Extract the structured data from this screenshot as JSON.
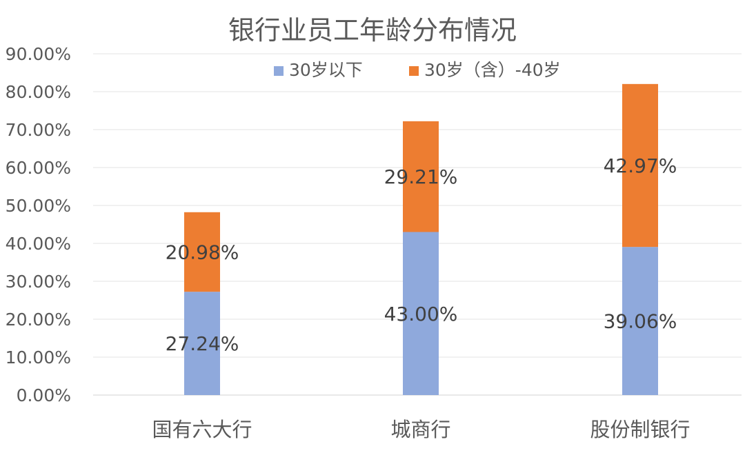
{
  "chart_data": {
    "type": "bar",
    "stacked": true,
    "title": "银行业员工年龄分布情况",
    "categories": [
      "国有六大行",
      "城商行",
      "股份制银行"
    ],
    "series": [
      {
        "name": "30岁以下",
        "color": "#8FA9DC",
        "values": [
          27.24,
          43.0,
          39.06
        ],
        "labels": [
          "27.24%",
          "43.00%",
          "39.06%"
        ]
      },
      {
        "name": "30岁（含）-40岁",
        "color": "#ED7D31",
        "values": [
          20.98,
          29.21,
          42.97
        ],
        "labels": [
          "20.98%",
          "29.21%",
          "42.97%"
        ]
      }
    ],
    "ylim": [
      0,
      90
    ],
    "yticks": [
      "0.00%",
      "10.00%",
      "20.00%",
      "30.00%",
      "40.00%",
      "50.00%",
      "60.00%",
      "70.00%",
      "80.00%",
      "90.00%"
    ],
    "grid": true,
    "legend": "top-right"
  }
}
